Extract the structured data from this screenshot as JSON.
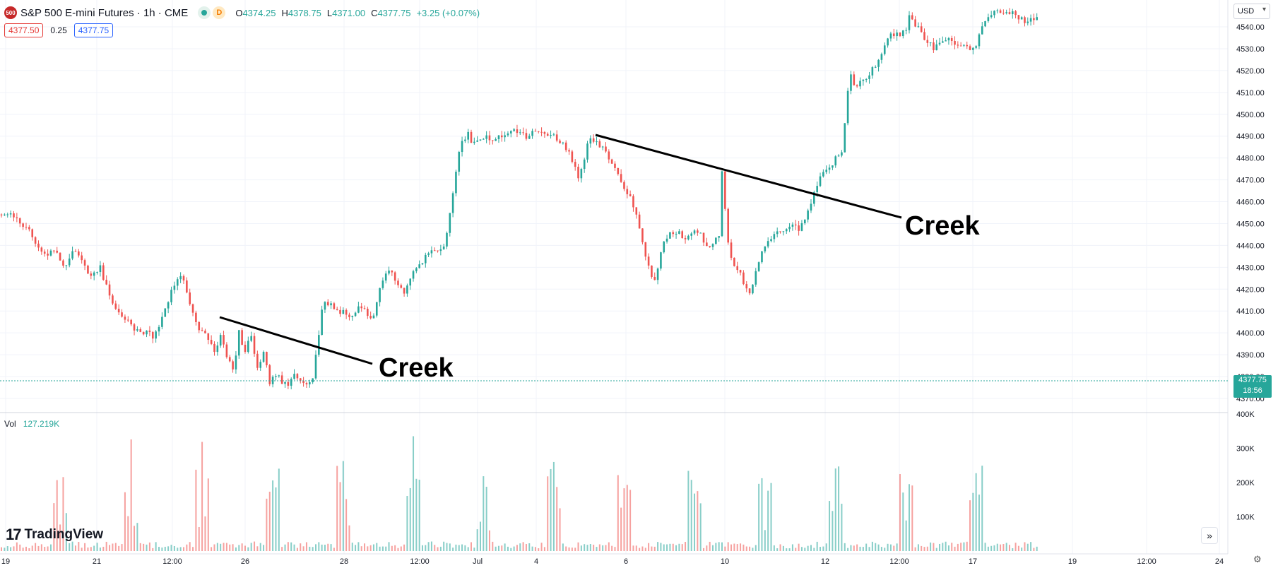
{
  "header": {
    "logo_text": "500",
    "symbol": "S&P 500 E-mini Futures · 1h · CME",
    "d_badge": "D",
    "open_label": "O",
    "open": "4374.25",
    "high_label": "H",
    "high": "4378.75",
    "low_label": "L",
    "low": "4371.00",
    "close_label": "C",
    "close": "4377.75",
    "change": "+3.25 (+0.07%)",
    "bid": "4377.50",
    "spread": "0.25",
    "ask": "4377.75",
    "currency": "USD"
  },
  "volume_header": {
    "label": "Vol",
    "value": "127.219K"
  },
  "price_tag": {
    "price": "4377.75",
    "countdown": "18:56"
  },
  "branding": {
    "logo": "17",
    "name": "TradingView"
  },
  "controls": {
    "scroll_arrow": "»",
    "settings_icon": "gear-icon"
  },
  "colors": {
    "up": "#26a69a",
    "down": "#ef5350",
    "grid": "#f0f3fa",
    "line": "#000000"
  },
  "chart_data": {
    "type": "candlestick",
    "timeframe": "1h",
    "price_axis": {
      "ticks": [
        "4540.00",
        "4530.00",
        "4520.00",
        "4510.00",
        "4500.00",
        "4490.00",
        "4480.00",
        "4470.00",
        "4460.00",
        "4450.00",
        "4440.00",
        "4430.00",
        "4420.00",
        "4410.00",
        "4400.00",
        "4390.00",
        "4380.00",
        "4370.00"
      ],
      "range": [
        4367,
        4546
      ]
    },
    "volume_axis": {
      "ticks": [
        "400K",
        "300K",
        "200K",
        "100K"
      ],
      "range": [
        0,
        400000
      ]
    },
    "time_axis": {
      "ticks": [
        "19",
        "21",
        "12:00",
        "26",
        "28",
        "12:00",
        "Jul",
        "4",
        "6",
        "10",
        "12",
        "12:00",
        "17",
        "19",
        "12:00",
        "24"
      ]
    },
    "price_path": [
      [
        4453,
        4456,
        4450,
        4448,
        4440,
        4436,
        4438,
        4430,
        4438,
        4433,
        4425,
        4430,
        4418,
        4410,
        4405,
        4402,
        4400,
        4398,
        4408,
        4420,
        4426
      ],
      [
        4424,
        4414,
        4405,
        4400,
        4398,
        4392,
        4398,
        4390,
        4382,
        4400,
        4392,
        4398,
        4384,
        4392,
        4376,
        4381,
        4378,
        4376,
        4382,
        4379,
        4376,
        4380
      ],
      [
        4390,
        4416,
        4412,
        4410,
        4408,
        4410,
        4412,
        4406,
        4420,
        4430,
        4424,
        4418,
        4426,
        4432,
        4436,
        4438,
        4440,
        4460,
        4486,
        4492
      ],
      [
        4488,
        4490,
        4488,
        4490,
        4492,
        4490,
        4492,
        4490,
        4489,
        4484,
        4470,
        4490,
        4486,
        4478,
        4468,
        4460,
        4438,
        4423,
        4444,
        4446,
        4443,
        4447,
        4438,
        4444
      ],
      [
        4474,
        4436,
        4430,
        4424,
        4416,
        4430,
        4440,
        4444,
        4446,
        4448,
        4450,
        4446,
        4456,
        4464,
        4472,
        4474,
        4480,
        4484,
        4518,
        4512,
        4516,
        4520,
        4524,
        4532,
        4537,
        4536,
        4538
      ],
      [
        4546,
        4536,
        4530,
        4534,
        4532,
        4529,
        4544,
        4547,
        4546,
        4543,
        4544
      ]
    ],
    "series": [
      {
        "name": "Creek",
        "type": "trendline",
        "points": [
          [
            "Jun 23",
            4406
          ],
          [
            "Jun 27",
            4385
          ]
        ]
      },
      {
        "name": "Creek",
        "type": "trendline",
        "points": [
          [
            "Jul 5",
            4490
          ],
          [
            "Jul 12",
            4450
          ]
        ]
      }
    ],
    "current_price": 4377.75,
    "annotations": [
      "Creek",
      "Creek"
    ]
  }
}
